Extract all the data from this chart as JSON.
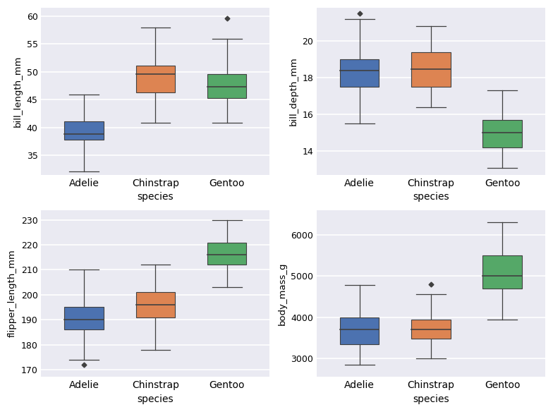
{
  "species": [
    "Adelie",
    "Chinstrap",
    "Gentoo"
  ],
  "colors": [
    "#4c72b0",
    "#dd8452",
    "#55a868"
  ],
  "panel_bg": "#eaeaf2",
  "fig_bg": "#ffffff",
  "grid_color": "#ffffff",
  "edge_color": "#404040",
  "subplots": [
    {
      "ylabel": "bill_length_mm",
      "xlabel": "species",
      "ylim": [
        31.5,
        61.5
      ],
      "yticks": [
        35,
        40,
        45,
        50,
        55,
        60
      ],
      "boxes": [
        {
          "q1": 37.8,
          "median": 38.8,
          "q3": 41.1,
          "whisker_low": 32.1,
          "whisker_high": 46.0,
          "outliers": []
        },
        {
          "q1": 46.35,
          "median": 49.55,
          "q3": 51.075,
          "whisker_low": 40.9,
          "whisker_high": 58.0,
          "outliers": []
        },
        {
          "q1": 45.3,
          "median": 47.3,
          "q3": 49.55,
          "whisker_low": 40.9,
          "whisker_high": 55.95,
          "outliers": [
            59.6
          ]
        }
      ]
    },
    {
      "ylabel": "bill_depth_mm",
      "xlabel": "species",
      "ylim": [
        12.7,
        21.8
      ],
      "yticks": [
        14,
        16,
        18,
        20
      ],
      "boxes": [
        {
          "q1": 17.5,
          "median": 18.4,
          "q3": 19.0,
          "whisker_low": 15.5,
          "whisker_high": 21.2,
          "outliers": [
            21.5
          ]
        },
        {
          "q1": 17.5,
          "median": 18.45,
          "q3": 19.4,
          "whisker_low": 16.4,
          "whisker_high": 20.8,
          "outliers": []
        },
        {
          "q1": 14.2,
          "median": 15.0,
          "q3": 15.7,
          "whisker_low": 13.1,
          "whisker_high": 17.3,
          "outliers": []
        }
      ]
    },
    {
      "ylabel": "flipper_length_mm",
      "xlabel": "species",
      "ylim": [
        167,
        234
      ],
      "yticks": [
        170,
        180,
        190,
        200,
        210,
        220,
        230
      ],
      "boxes": [
        {
          "q1": 186.0,
          "median": 190.0,
          "q3": 195.0,
          "whisker_low": 174.0,
          "whisker_high": 210.0,
          "outliers": [
            172.0
          ]
        },
        {
          "q1": 191.0,
          "median": 196.0,
          "q3": 201.0,
          "whisker_low": 178.0,
          "whisker_high": 212.0,
          "outliers": []
        },
        {
          "q1": 212.0,
          "median": 216.0,
          "q3": 221.0,
          "whisker_low": 203.0,
          "whisker_high": 230.0,
          "outliers": []
        }
      ]
    },
    {
      "ylabel": "body_mass_g",
      "xlabel": "species",
      "ylim": [
        2550,
        6600
      ],
      "yticks": [
        3000,
        4000,
        5000,
        6000
      ],
      "boxes": [
        {
          "q1": 3350.0,
          "median": 3700.0,
          "q3": 4000.0,
          "whisker_low": 2850.0,
          "whisker_high": 4775.0,
          "outliers": []
        },
        {
          "q1": 3487.5,
          "median": 3700.0,
          "q3": 3950.0,
          "whisker_low": 3000.0,
          "whisker_high": 4550.0,
          "outliers": [
            4800.0
          ]
        },
        {
          "q1": 4700.0,
          "median": 5000.0,
          "q3": 5500.0,
          "whisker_low": 3950.0,
          "whisker_high": 6300.0,
          "outliers": []
        }
      ]
    }
  ]
}
